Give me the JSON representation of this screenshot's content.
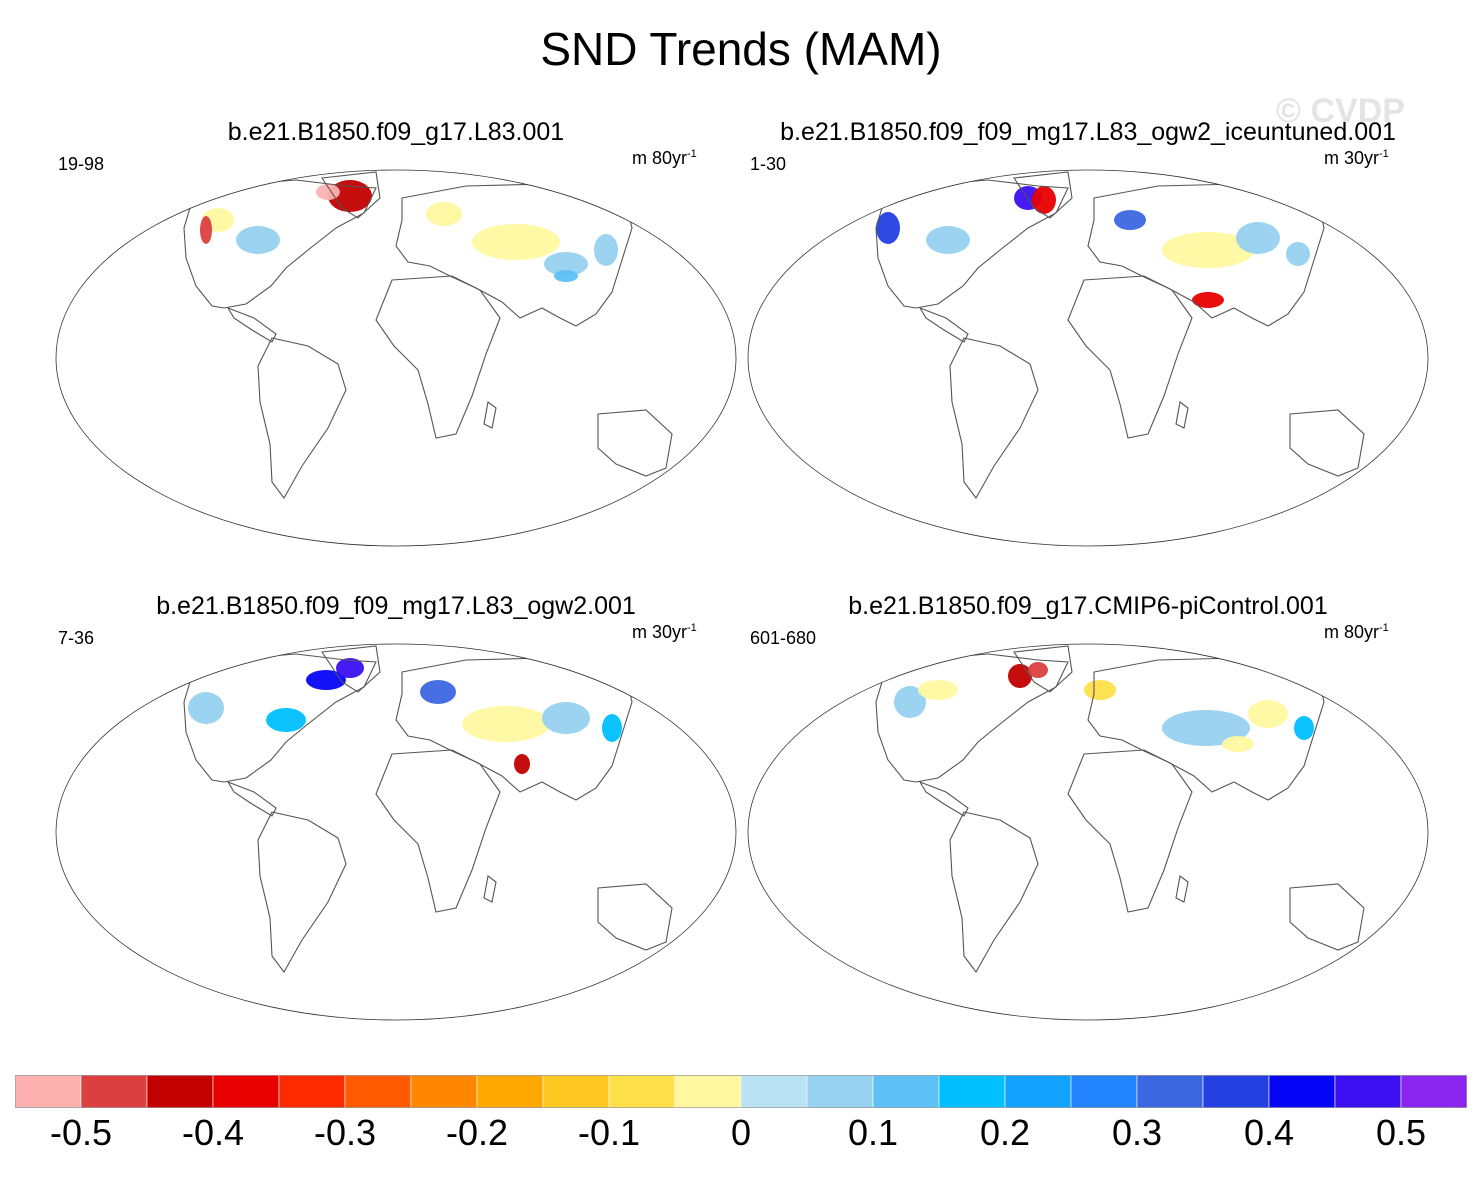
{
  "title": "SND Trends (MAM)",
  "watermark": "© CVDP",
  "panels": [
    {
      "title": "b.e21.B1850.f09_g17.L83.001",
      "years": "19-98",
      "units": "m 80yr",
      "units_exp": "-1"
    },
    {
      "title": "b.e21.B1850.f09_f09_mg17.L83_ogw2_iceuntuned.001",
      "years": "1-30",
      "units": "m 30yr",
      "units_exp": "-1"
    },
    {
      "title": "b.e21.B1850.f09_f09_mg17.L83_ogw2.001",
      "years": "7-36",
      "units": "m 30yr",
      "units_exp": "-1"
    },
    {
      "title": "b.e21.B1850.f09_g17.CMIP6-piControl.001",
      "years": "601-680",
      "units": "m 80yr",
      "units_exp": "-1"
    }
  ],
  "colorbar": {
    "colors": [
      "#fdb1b1",
      "#dc3f3f",
      "#c30000",
      "#e80000",
      "#ff2a00",
      "#ff5a00",
      "#ff8700",
      "#ffa800",
      "#ffc822",
      "#ffe04a",
      "#fff8a0",
      "#b9e2f5",
      "#96d1ef",
      "#5ec0f5",
      "#00c0ff",
      "#13a2ff",
      "#2285ff",
      "#3b67e0",
      "#2440e0",
      "#0505f7",
      "#3a10f2",
      "#8a24ef"
    ],
    "labels": [
      "-0.5",
      "-0.4",
      "-0.3",
      "-0.2",
      "-0.1",
      "0",
      "0.1",
      "0.2",
      "0.3",
      "0.4",
      "0.5"
    ]
  }
}
